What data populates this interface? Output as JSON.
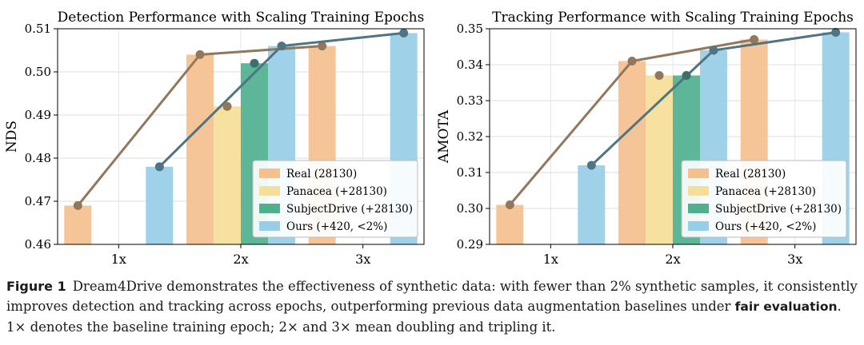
{
  "chart_data": [
    {
      "type": "bar",
      "title": "Detection Performance with Scaling Training Epochs",
      "xlabel": "",
      "ylabel": "NDS",
      "ylim": [
        0.46,
        0.51
      ],
      "yticks": [
        "0.46",
        "0.47",
        "0.48",
        "0.49",
        "0.50",
        "0.51"
      ],
      "categories": [
        "1x",
        "2x",
        "3x"
      ],
      "series": [
        {
          "name": "Real (28130)",
          "color": "#f5c08e",
          "values": [
            0.469,
            0.504,
            0.506
          ]
        },
        {
          "name": "Panacea (+28130)",
          "color": "#f5de99",
          "values": [
            null,
            0.492,
            null
          ]
        },
        {
          "name": "SubjectDrive (+28130)",
          "color": "#4fb08e",
          "values": [
            null,
            0.502,
            null
          ]
        },
        {
          "name": "Ours (+420, <2%)",
          "color": "#97cde6",
          "values": [
            0.478,
            0.506,
            0.509
          ]
        }
      ],
      "lines": [
        {
          "series": "Real (28130)",
          "color": "#91775c",
          "values": [
            0.469,
            0.504,
            0.506
          ]
        },
        {
          "series": "Ours (+420, <2%)",
          "color": "#4f7482",
          "values": [
            0.478,
            0.506,
            0.509
          ]
        }
      ],
      "extra_points": [
        {
          "series": "Panacea (+28130)",
          "color": "#91775c",
          "category": "2x",
          "value": 0.492
        },
        {
          "series": "SubjectDrive (+28130)",
          "color": "#3f6f6c",
          "category": "2x",
          "value": 0.502
        }
      ],
      "legend": "lower-right"
    },
    {
      "type": "bar",
      "title": "Tracking Performance with Scaling Training Epochs",
      "xlabel": "",
      "ylabel": "AMOTA",
      "ylim": [
        0.29,
        0.35
      ],
      "yticks": [
        "0.29",
        "0.30",
        "0.31",
        "0.32",
        "0.33",
        "0.34",
        "0.35"
      ],
      "categories": [
        "1x",
        "2x",
        "3x"
      ],
      "series": [
        {
          "name": "Real (28130)",
          "color": "#f5c08e",
          "values": [
            0.301,
            0.341,
            0.347
          ]
        },
        {
          "name": "Panacea (+28130)",
          "color": "#f5de99",
          "values": [
            null,
            0.337,
            null
          ]
        },
        {
          "name": "SubjectDrive (+28130)",
          "color": "#4fb08e",
          "values": [
            null,
            0.337,
            null
          ]
        },
        {
          "name": "Ours (+420, <2%)",
          "color": "#97cde6",
          "values": [
            0.312,
            0.344,
            0.349
          ]
        }
      ],
      "lines": [
        {
          "series": "Real (28130)",
          "color": "#91775c",
          "values": [
            0.301,
            0.341,
            0.347
          ]
        },
        {
          "series": "Ours (+420, <2%)",
          "color": "#4f7482",
          "values": [
            0.312,
            0.344,
            0.349
          ]
        }
      ],
      "extra_points": [
        {
          "series": "Panacea (+28130)",
          "color": "#91775c",
          "category": "2x",
          "value": 0.337
        },
        {
          "series": "SubjectDrive (+28130)",
          "color": "#3f6f6c",
          "category": "2x",
          "value": 0.337
        }
      ],
      "legend": "lower-right"
    }
  ],
  "caption": {
    "label": "Figure 1",
    "text_1": "Dream4Drive demonstrates the effectiveness of synthetic data: with fewer than 2% synthetic samples, it consistently improves detection and tracking across epochs, outperforming previous data augmentation baselines under ",
    "emphasis": "fair evaluation",
    "text_2": ". 1× denotes the baseline training epoch; 2× and 3× mean doubling and tripling it."
  }
}
